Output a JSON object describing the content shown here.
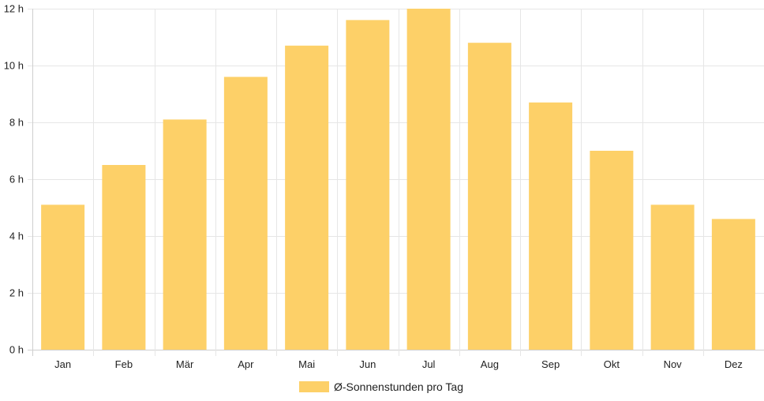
{
  "chart_data": {
    "type": "bar",
    "categories": [
      "Jan",
      "Feb",
      "Mär",
      "Apr",
      "Mai",
      "Jun",
      "Jul",
      "Aug",
      "Sep",
      "Okt",
      "Nov",
      "Dez"
    ],
    "series": [
      {
        "name": "Ø-Sonnenstunden pro Tag",
        "values": [
          5.1,
          6.5,
          8.1,
          9.6,
          10.7,
          11.6,
          12.0,
          10.8,
          8.7,
          7.0,
          5.1,
          4.6
        ],
        "color": "#fdd068"
      }
    ],
    "y_ticks": [
      0,
      2,
      4,
      6,
      8,
      10,
      12
    ],
    "y_unit": "h",
    "ylim": [
      0,
      12
    ],
    "grid": true,
    "legend": "bottom-center"
  }
}
